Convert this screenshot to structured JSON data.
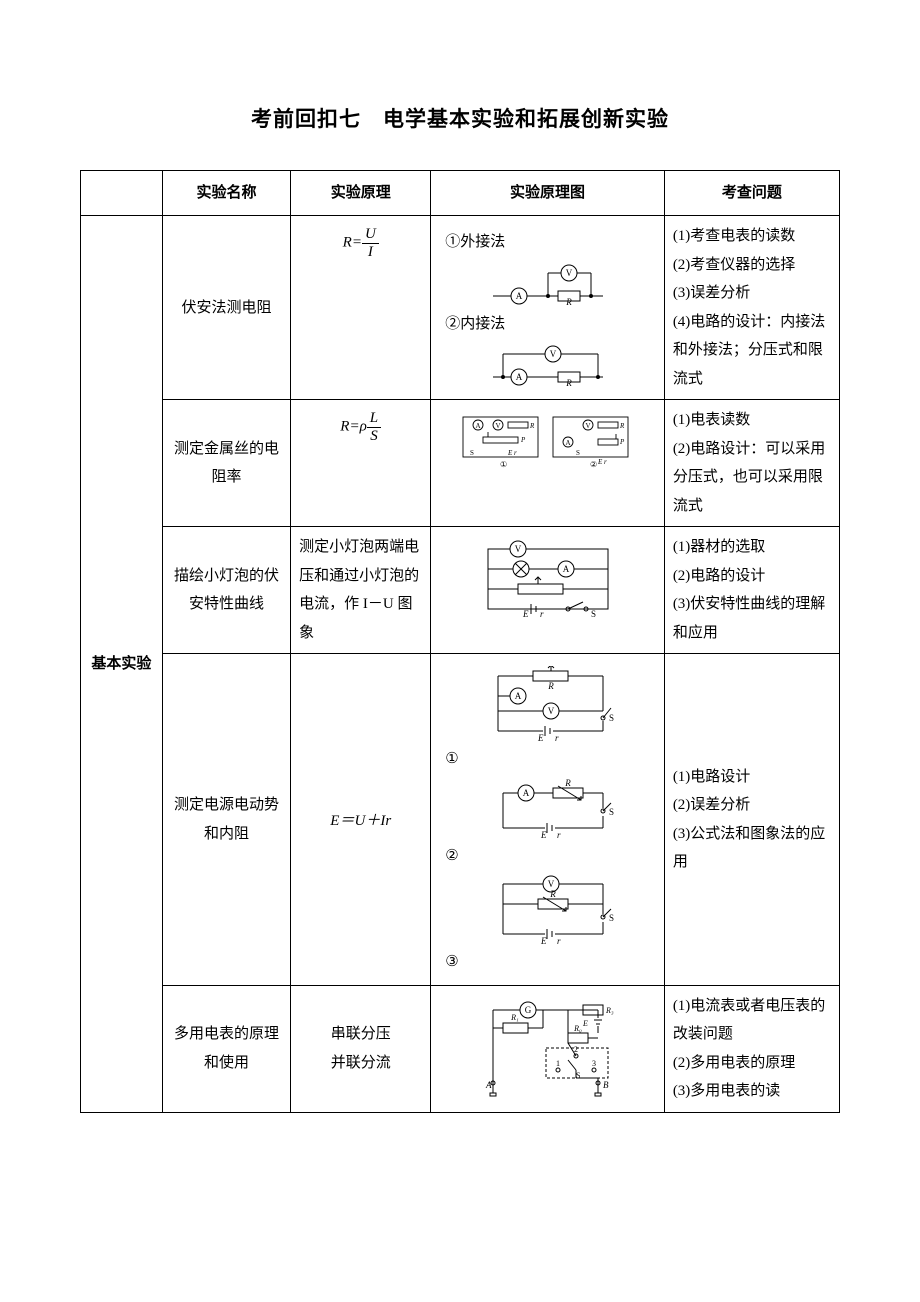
{
  "title": "考前回扣七　电学基本实验和拓展创新实验",
  "headers": {
    "c0": "",
    "c1": "实验名称",
    "c2": "实验原理",
    "c3": "实验原理图",
    "c4": "考查问题"
  },
  "group_label": "基本实验",
  "rows": [
    {
      "name": "伏安法测电阻",
      "principle_html": "<span style='font-style:italic'>R</span>=<span class='frac'><span class='num'><i>U</i></span><span class='den'><i>I</i></span></span>",
      "diagrams": {
        "l1": "①外接法",
        "l2": "②内接法"
      },
      "issues": [
        "(1)考查电表的读数",
        "(2)考查仪器的选择",
        "(3)误差分析",
        "(4)电路的设计：内接法和外接法；分压式和限流式"
      ]
    },
    {
      "name": "测定金属丝的电阻率",
      "principle_html": "<span style='font-style:italic'>R</span>=<span style='font-style:italic'>ρ</span><span class='frac'><span class='num'><i>L</i></span><span class='den'><i>S</i></span></span>",
      "issues": [
        "(1)电表读数",
        "(2)电路设计：可以采用分压式，也可以采用限流式"
      ]
    },
    {
      "name": "描绘小灯泡的伏安特性曲线",
      "principle_text": "测定小灯泡两端电压和通过小灯泡的电流，作 I－U 图象",
      "issues": [
        "(1)器材的选取",
        "(2)电路的设计",
        "(3)伏安特性曲线的理解和应用"
      ]
    },
    {
      "name": "测定电源电动势和内阻",
      "principle_html": "<i>E</i>＝<i>U</i>＋<i>Ir</i>",
      "diagrams": {
        "n1": "①",
        "n2": "②",
        "n3": "③"
      },
      "issues": [
        "(1)电路设计",
        "(2)误差分析",
        "(3)公式法和图象法的应用"
      ]
    },
    {
      "name": "多用电表的原理和使用",
      "principle_text": "串联分压\n并联分流",
      "issues": [
        "(1)电流表或者电压表的改装问题",
        "(2)多用电表的原理",
        "(3)多用电表的读"
      ]
    }
  ],
  "style": {
    "stroke": "#000000",
    "stroke_width": 1,
    "font_diag": 9
  }
}
